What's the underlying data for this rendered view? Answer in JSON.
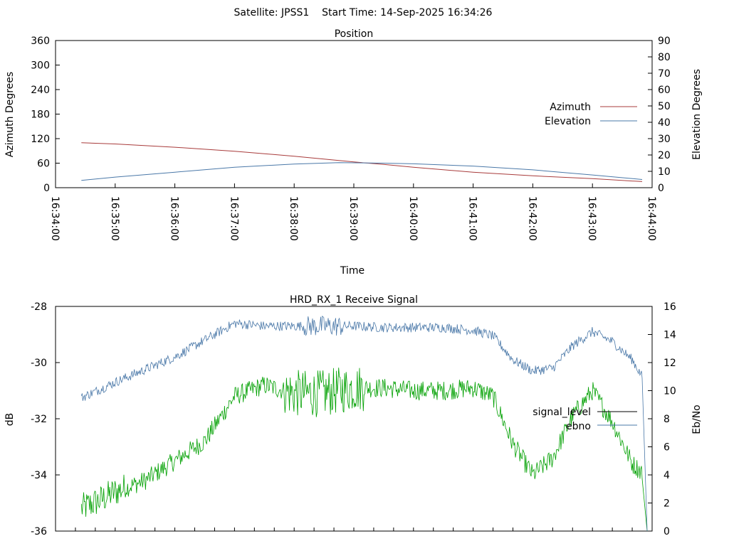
{
  "page_title": "Satellite: JPSS1    Start Time: 14-Sep-2025 16:34:26",
  "colors": {
    "azimuth": "#a83b3b",
    "elevation": "#4a78a8",
    "signal_level": "#00a000",
    "signal_level_legend": "#000000",
    "ebno": "#4a78a8",
    "frame": "#000000"
  },
  "chart_data": [
    {
      "type": "line",
      "title": "Position",
      "xlabel": "Time",
      "ylabel": "Azimuth Degrees",
      "y2label": "Elevation Degrees",
      "xlim": [
        "16:34:00",
        "16:44:00"
      ],
      "ylim": [
        0,
        360
      ],
      "y2lim": [
        0,
        90
      ],
      "x_ticks": [
        "16:34:00",
        "16:35:00",
        "16:36:00",
        "16:37:00",
        "16:38:00",
        "16:39:00",
        "16:40:00",
        "16:41:00",
        "16:42:00",
        "16:43:00",
        "16:44:00"
      ],
      "y_ticks": [
        "0",
        "60",
        "120",
        "180",
        "240",
        "300",
        "360"
      ],
      "y2_ticks": [
        "0",
        "10",
        "20",
        "30",
        "40",
        "50",
        "60",
        "70",
        "80",
        "90"
      ],
      "legend_position": "right",
      "series": [
        {
          "name": "Azimuth",
          "axis": "y",
          "x": [
            "16:34:26",
            "16:35:00",
            "16:36:00",
            "16:37:00",
            "16:38:00",
            "16:38:30",
            "16:39:00",
            "16:39:30",
            "16:40:00",
            "16:41:00",
            "16:42:00",
            "16:43:00",
            "16:43:50"
          ],
          "values": [
            110,
            107,
            99,
            89,
            77,
            70,
            63,
            57,
            50,
            38,
            29,
            22,
            15
          ]
        },
        {
          "name": "Elevation",
          "axis": "y2",
          "x": [
            "16:34:26",
            "16:35:00",
            "16:36:00",
            "16:37:00",
            "16:38:00",
            "16:38:45",
            "16:39:30",
            "16:40:00",
            "16:41:00",
            "16:42:00",
            "16:43:00",
            "16:43:50"
          ],
          "values": [
            4.5,
            6.5,
            9.5,
            12.5,
            14.5,
            15.3,
            15.0,
            14.6,
            13.2,
            10.9,
            7.8,
            5.0
          ]
        }
      ]
    },
    {
      "type": "line",
      "title": "HRD_RX_1 Receive Signal",
      "xlabel": "",
      "ylabel": "dB",
      "y2label": "Eb/No",
      "xlim": [
        "16:34:00",
        "16:44:00"
      ],
      "ylim": [
        -36,
        -28
      ],
      "y2lim": [
        0,
        16
      ],
      "y_ticks": [
        "-28",
        "-30",
        "-32",
        "-34",
        "-36"
      ],
      "y2_ticks": [
        "0",
        "2",
        "4",
        "6",
        "8",
        "10",
        "12",
        "14",
        "16"
      ],
      "legend_position": "right",
      "series": [
        {
          "name": "signal_level",
          "axis": "y",
          "x": [
            "16:34:26",
            "16:34:45",
            "16:35:00",
            "16:35:30",
            "16:36:00",
            "16:36:30",
            "16:37:00",
            "16:37:30",
            "16:38:00",
            "16:38:30",
            "16:39:00",
            "16:39:30",
            "16:40:00",
            "16:40:30",
            "16:41:00",
            "16:41:20",
            "16:41:40",
            "16:42:00",
            "16:42:20",
            "16:42:40",
            "16:43:00",
            "16:43:20",
            "16:43:40",
            "16:43:50",
            "16:43:55"
          ],
          "values": [
            -35.2,
            -34.9,
            -34.6,
            -34.2,
            -33.5,
            -32.8,
            -31.2,
            -30.8,
            -31.1,
            -31.1,
            -30.9,
            -30.9,
            -31.0,
            -31.0,
            -30.9,
            -31.2,
            -32.9,
            -34.0,
            -33.4,
            -31.9,
            -31.0,
            -32.1,
            -33.6,
            -33.9,
            -36.0
          ]
        },
        {
          "name": "ebno",
          "axis": "y2",
          "x": [
            "16:34:26",
            "16:34:45",
            "16:35:00",
            "16:35:30",
            "16:36:00",
            "16:36:30",
            "16:37:00",
            "16:37:30",
            "16:38:00",
            "16:38:30",
            "16:39:00",
            "16:39:30",
            "16:40:00",
            "16:40:30",
            "16:41:00",
            "16:41:20",
            "16:41:40",
            "16:42:00",
            "16:42:20",
            "16:42:40",
            "16:43:00",
            "16:43:20",
            "16:43:40",
            "16:43:50",
            "16:43:55"
          ],
          "values": [
            9.5,
            10.1,
            10.6,
            11.5,
            12.4,
            13.6,
            14.8,
            14.6,
            14.6,
            14.6,
            14.6,
            14.5,
            14.5,
            14.5,
            14.3,
            13.9,
            12.2,
            11.4,
            11.6,
            13.2,
            14.2,
            13.5,
            12.2,
            11.0,
            0
          ]
        }
      ]
    }
  ]
}
